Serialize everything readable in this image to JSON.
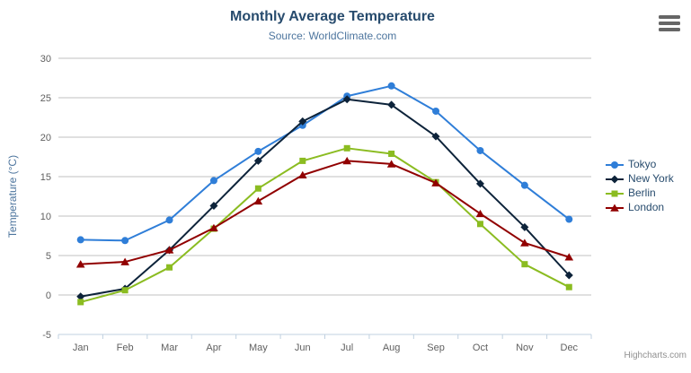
{
  "chart": {
    "title": "Monthly Average Temperature",
    "subtitle": "Source: WorldClimate.com",
    "y_axis_title": "Temperature (°C)",
    "credits": "Highcharts.com"
  },
  "colors": {
    "title": "#274b6d",
    "subtitle": "#4d759e",
    "axis_title": "#4d759e",
    "axis_labels": "#606060",
    "grid_line": "#c0c0c0",
    "axis_line": "#c0d0e0",
    "legend_text": "#274b6d",
    "credits_text": "#909090",
    "export_icon": "#666666"
  },
  "chart_data": {
    "type": "line",
    "title": "Monthly Average Temperature",
    "subtitle": "Source: WorldClimate.com",
    "xlabel": "",
    "ylabel": "Temperature (°C)",
    "ylim": [
      -5,
      30
    ],
    "ytick_step": 5,
    "grid": true,
    "legend_position": "right",
    "categories": [
      "Jan",
      "Feb",
      "Mar",
      "Apr",
      "May",
      "Jun",
      "Jul",
      "Aug",
      "Sep",
      "Oct",
      "Nov",
      "Dec"
    ],
    "series": [
      {
        "name": "Tokyo",
        "color": "#2f7ed8",
        "marker": "circle",
        "values": [
          7.0,
          6.9,
          9.5,
          14.5,
          18.2,
          21.5,
          25.2,
          26.5,
          23.3,
          18.3,
          13.9,
          9.6
        ]
      },
      {
        "name": "New York",
        "color": "#0d233a",
        "marker": "diamond",
        "values": [
          -0.2,
          0.8,
          5.7,
          11.3,
          17.0,
          22.0,
          24.8,
          24.1,
          20.1,
          14.1,
          8.6,
          2.5
        ]
      },
      {
        "name": "Berlin",
        "color": "#8bbc21",
        "marker": "square",
        "values": [
          -0.9,
          0.6,
          3.5,
          8.4,
          13.5,
          17.0,
          18.6,
          17.9,
          14.3,
          9.0,
          3.9,
          1.0
        ]
      },
      {
        "name": "London",
        "color": "#910000",
        "marker": "triangle",
        "values": [
          3.9,
          4.2,
          5.7,
          8.5,
          11.9,
          15.2,
          17.0,
          16.6,
          14.2,
          10.3,
          6.6,
          4.8
        ]
      }
    ]
  }
}
